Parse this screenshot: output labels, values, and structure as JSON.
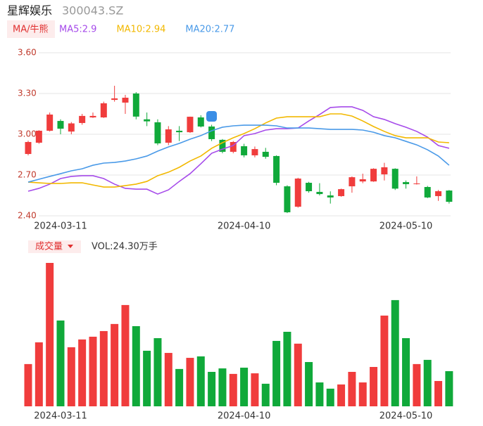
{
  "chart_data": {
    "type": "candlestick",
    "title": "星辉娱乐",
    "subtitle": "300043.SZ",
    "indicator_label": "MA/牛熊",
    "categories": [
      null,
      null,
      null,
      "2024-03-11",
      null,
      null,
      null,
      null,
      null,
      null,
      null,
      null,
      null,
      null,
      null,
      null,
      null,
      null,
      null,
      null,
      "2024-04-10",
      null,
      null,
      null,
      null,
      null,
      null,
      null,
      null,
      null,
      null,
      null,
      null,
      null,
      null,
      "2024-05-10",
      null,
      null,
      null,
      null
    ],
    "open": [
      2.855,
      2.938,
      3.026,
      3.098,
      3.02,
      3.083,
      3.124,
      3.124,
      3.253,
      3.233,
      3.3,
      3.11,
      3.088,
      2.938,
      3.026,
      3.015,
      3.124,
      3.057,
      2.959,
      2.871,
      2.912,
      2.845,
      2.871,
      2.84,
      2.617,
      2.467,
      2.643,
      2.576,
      2.55,
      2.545,
      2.617,
      2.653,
      2.653,
      2.705,
      2.746,
      2.648,
      2.633,
      2.612,
      2.545,
      2.586
    ],
    "high": [
      2.953,
      3.03,
      3.16,
      3.11,
      3.09,
      3.15,
      3.16,
      3.24,
      3.357,
      3.29,
      3.31,
      3.16,
      3.11,
      3.06,
      3.06,
      3.13,
      3.14,
      3.07,
      2.965,
      2.95,
      2.93,
      2.91,
      2.9,
      2.845,
      2.625,
      2.68,
      2.65,
      2.64,
      2.58,
      2.6,
      2.69,
      2.71,
      2.75,
      2.79,
      2.75,
      2.66,
      2.69,
      2.62,
      2.59,
      2.59
    ],
    "low": [
      2.845,
      2.93,
      3.02,
      3.0,
      3.0,
      3.07,
      3.12,
      3.12,
      3.24,
      3.15,
      3.11,
      3.06,
      2.92,
      2.92,
      2.95,
      3.01,
      3.05,
      2.95,
      2.86,
      2.86,
      2.83,
      2.83,
      2.82,
      2.625,
      2.42,
      2.46,
      2.57,
      2.55,
      2.49,
      2.54,
      2.57,
      2.64,
      2.65,
      2.66,
      2.59,
      2.6,
      2.63,
      2.53,
      2.51,
      2.49
    ],
    "close": [
      2.943,
      3.026,
      3.145,
      3.041,
      3.08,
      3.135,
      3.135,
      3.228,
      3.264,
      3.269,
      3.13,
      3.095,
      2.933,
      3.036,
      3.015,
      3.129,
      3.057,
      2.964,
      2.871,
      2.943,
      2.845,
      2.891,
      2.834,
      2.643,
      2.426,
      2.674,
      2.581,
      2.56,
      2.535,
      2.596,
      2.684,
      2.669,
      2.746,
      2.757,
      2.6,
      2.633,
      2.638,
      2.535,
      2.581,
      2.503
    ],
    "up_color": "#f03c3c",
    "down_color": "#10a93a",
    "series": [
      {
        "name": "MA5:2.9",
        "color": "#a64bea",
        "values": [
          2.581,
          2.602,
          2.633,
          2.674,
          2.69,
          2.695,
          2.695,
          2.674,
          2.633,
          2.602,
          2.596,
          2.596,
          2.56,
          2.591,
          2.653,
          2.71,
          2.783,
          2.86,
          2.891,
          2.917,
          2.99,
          3.005,
          3.031,
          3.041,
          3.041,
          3.046,
          3.098,
          3.145,
          3.197,
          3.202,
          3.202,
          3.176,
          3.129,
          3.109,
          3.078,
          3.052,
          3.021,
          2.979,
          2.917,
          2.897
        ]
      },
      {
        "name": "MA10:2.94",
        "color": "#f2b800",
        "values": [
          2.648,
          2.643,
          2.638,
          2.638,
          2.643,
          2.643,
          2.627,
          2.612,
          2.612,
          2.622,
          2.633,
          2.653,
          2.695,
          2.721,
          2.757,
          2.803,
          2.84,
          2.897,
          2.938,
          2.974,
          3.005,
          3.041,
          3.083,
          3.119,
          3.129,
          3.129,
          3.129,
          3.129,
          3.15,
          3.15,
          3.134,
          3.098,
          3.057,
          3.021,
          2.99,
          2.974,
          2.974,
          2.974,
          2.943,
          2.938
        ]
      },
      {
        "name": "MA20:2.77",
        "color": "#4a9ae8",
        "values": [
          2.648,
          2.669,
          2.69,
          2.71,
          2.731,
          2.746,
          2.772,
          2.788,
          2.793,
          2.803,
          2.819,
          2.84,
          2.876,
          2.907,
          2.933,
          2.964,
          2.99,
          3.026,
          3.052,
          3.062,
          3.067,
          3.067,
          3.067,
          3.062,
          3.046,
          3.046,
          3.046,
          3.041,
          3.036,
          3.036,
          3.036,
          3.031,
          3.015,
          2.99,
          2.974,
          2.948,
          2.922,
          2.886,
          2.84,
          2.772
        ]
      }
    ],
    "ylim": [
      2.4,
      3.6
    ],
    "yticks": [
      {
        "value": 2.4,
        "label": "2.40"
      },
      {
        "value": 2.7,
        "label": "2.70"
      },
      {
        "value": 3.0,
        "label": "3.00"
      },
      {
        "value": 3.3,
        "label": "3.30"
      },
      {
        "value": 3.6,
        "label": "3.60"
      }
    ],
    "grid": true,
    "volume_title": "成交量",
    "volume_label": "VOL:24.30万手",
    "volume": [
      29.2,
      44.2,
      99.1,
      59.3,
      40.8,
      46.2,
      48.1,
      52.0,
      56.9,
      70.0,
      55.4,
      38.4,
      47.1,
      36.9,
      25.8,
      33.5,
      34.5,
      23.8,
      26.2,
      22.4,
      26.7,
      22.8,
      15.6,
      45.2,
      51.5,
      43.3,
      30.6,
      16.5,
      12.2,
      15.1,
      23.8,
      16.5,
      27.2,
      62.7,
      73.4,
      47.1,
      29.2,
      32.1,
      17.5,
      24.3
    ]
  }
}
